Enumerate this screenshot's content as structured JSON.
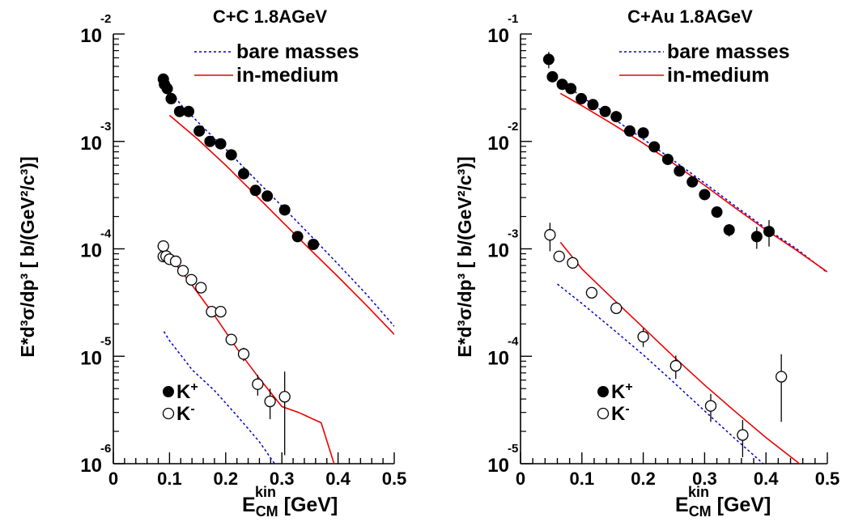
{
  "panels": [
    {
      "title": "C+C 1.8AGeV",
      "ylabel": "E*d³σ/dp³ [ b/(GeV²/c³)]",
      "xlabel_main": "E",
      "xlabel_sup": "kin",
      "xlabel_sub": "CM",
      "xlabel_unit": " [GeV]",
      "legend_curves": [
        {
          "label": "bare masses",
          "style": "dashed",
          "color": "#0000cc"
        },
        {
          "label": "in-medium",
          "style": "solid",
          "color": "#ee0000"
        }
      ],
      "legend_markers": [
        {
          "label": "K",
          "sup": "+",
          "marker": "filled"
        },
        {
          "label": "K",
          "sup": "-",
          "marker": "open"
        }
      ]
    },
    {
      "title": "C+Au 1.8AGeV",
      "ylabel": "E*d³σ/dp³ [ b/(GeV²/c³)]",
      "xlabel_main": "E",
      "xlabel_sup": "kin",
      "xlabel_sub": "CM",
      "xlabel_unit": " [GeV]",
      "legend_curves": [
        {
          "label": "bare masses",
          "style": "dashed",
          "color": "#0000cc"
        },
        {
          "label": "in-medium",
          "style": "solid",
          "color": "#ee0000"
        }
      ],
      "legend_markers": [
        {
          "label": "K",
          "sup": "+",
          "marker": "filled"
        },
        {
          "label": "K",
          "sup": "-",
          "marker": "open"
        }
      ]
    }
  ],
  "chart_data": [
    {
      "type": "scatter",
      "title": "C+C 1.8AGeV",
      "xlabel": "E_CM^kin [GeV]",
      "ylabel": "E*d³σ/dp³ [ b/(GeV²/c³)]",
      "xlim": [
        0,
        0.5
      ],
      "ylim_log10": [
        -6,
        -2
      ],
      "yscale": "log",
      "xticks": [
        "0",
        "0.1",
        "0.2",
        "0.3",
        "0.4",
        "0.5"
      ],
      "yticks": [
        {
          "base": "10",
          "exp": "-2"
        },
        {
          "base": "10",
          "exp": "-3"
        },
        {
          "base": "10",
          "exp": "-4"
        },
        {
          "base": "10",
          "exp": "-5"
        },
        {
          "base": "10",
          "exp": "-6"
        }
      ],
      "grid": false,
      "legend": "top-right",
      "series": [
        {
          "name": "K+",
          "kind": "points",
          "marker": "filled",
          "x": [
            0.089,
            0.091,
            0.096,
            0.103,
            0.118,
            0.134,
            0.153,
            0.172,
            0.191,
            0.21,
            0.232,
            0.253,
            0.274,
            0.305,
            0.328,
            0.356
          ],
          "y": [
            0.0038,
            0.0034,
            0.0031,
            0.0025,
            0.0019,
            0.0019,
            0.00125,
            0.001,
            0.00095,
            0.00075,
            0.0005,
            0.00035,
            0.00031,
            0.00023,
            0.00013,
            0.00011
          ],
          "yerr": [
            0,
            0,
            0,
            0,
            0,
            0,
            0,
            0,
            0,
            0,
            0,
            0,
            0,
            0,
            0,
            0
          ]
        },
        {
          "name": "K-",
          "kind": "points",
          "marker": "open",
          "x": [
            0.089,
            0.089,
            0.094,
            0.1,
            0.111,
            0.124,
            0.139,
            0.156,
            0.175,
            0.191,
            0.21,
            0.232,
            0.257,
            0.279,
            0.305
          ],
          "y": [
            0.000106,
            8.48e-05,
            8.55e-05,
            8e-05,
            7.65e-05,
            6.25e-05,
            5.15e-05,
            4.35e-05,
            2.6e-05,
            2.6e-05,
            1.43e-05,
            1.05e-05,
            5.5e-06,
            3.8e-06,
            4.2e-06
          ],
          "yerr": [
            0,
            8e-06,
            0,
            0,
            0,
            0,
            0,
            0,
            0,
            0,
            0,
            1.5e-06,
            1.2e-06,
            1.2e-06,
            3e-06
          ]
        },
        {
          "name": "bare masses K+",
          "kind": "line",
          "style": "dashed",
          "color": "#0000cc",
          "x": [
            0.09,
            0.12,
            0.16,
            0.2,
            0.25,
            0.3,
            0.35,
            0.4,
            0.45,
            0.5
          ],
          "y": [
            0.0036,
            0.0022,
            0.00135,
            0.00085,
            0.00046,
            0.00025,
            0.000135,
            7.2e-05,
            3.8e-05,
            1.9e-05
          ]
        },
        {
          "name": "in-medium K+",
          "kind": "line",
          "style": "solid",
          "color": "#ee0000",
          "x": [
            0.1,
            0.15,
            0.2,
            0.25,
            0.3,
            0.35,
            0.4,
            0.45,
            0.5
          ],
          "y": [
            0.00175,
            0.00105,
            0.0006,
            0.00033,
            0.00018,
            9.9e-05,
            5.5e-05,
            3e-05,
            1.6e-05
          ]
        },
        {
          "name": "bare masses K-",
          "kind": "line",
          "style": "dashed",
          "color": "#0000cc",
          "x": [
            0.09,
            0.1,
            0.14,
            0.18,
            0.22,
            0.26,
            0.3,
            0.33,
            0.37,
            0.4
          ],
          "y": [
            1.7e-05,
            1.4e-05,
            7.5e-06,
            4.8e-06,
            2.8e-06,
            1.6e-06,
            8e-07,
            5.8e-07,
            4.5e-07,
            3.4e-07
          ]
        },
        {
          "name": "in-medium K-",
          "kind": "line",
          "style": "solid",
          "color": "#ee0000",
          "x": [
            0.09,
            0.1,
            0.14,
            0.18,
            0.22,
            0.26,
            0.3,
            0.33,
            0.37,
            0.41
          ],
          "y": [
            0.0001,
            8.5e-05,
            4.6e-05,
            2.4e-05,
            1.18e-05,
            6.2e-06,
            3.4e-06,
            3e-06,
            2.4e-06,
            5.2e-07
          ]
        }
      ]
    },
    {
      "type": "scatter",
      "title": "C+Au 1.8AGeV",
      "xlabel": "E_CM^kin [GeV]",
      "ylabel": "E*d³σ/dp³ [ b/(GeV²/c³)]",
      "xlim": [
        0,
        0.5
      ],
      "ylim_log10": [
        -5,
        -1
      ],
      "yscale": "log",
      "xticks": [
        "0",
        "0.1",
        "0.2",
        "0.3",
        "0.4",
        "0.5"
      ],
      "yticks": [
        {
          "base": "10",
          "exp": "-1"
        },
        {
          "base": "10",
          "exp": "-2"
        },
        {
          "base": "10",
          "exp": "-3"
        },
        {
          "base": "10",
          "exp": "-4"
        },
        {
          "base": "10",
          "exp": "-5"
        }
      ],
      "grid": false,
      "legend": "top-right",
      "series": [
        {
          "name": "K+",
          "kind": "points",
          "marker": "filled",
          "x": [
            0.046,
            0.052,
            0.068,
            0.082,
            0.099,
            0.118,
            0.138,
            0.156,
            0.178,
            0.2,
            0.218,
            0.24,
            0.259,
            0.28,
            0.3,
            0.32,
            0.34,
            0.385,
            0.405
          ],
          "y": [
            0.058,
            0.04,
            0.034,
            0.031,
            0.025,
            0.022,
            0.019,
            0.017,
            0.0125,
            0.012,
            0.0089,
            0.0068,
            0.0053,
            0.0042,
            0.0032,
            0.0022,
            0.0015,
            0.0013,
            0.00145
          ],
          "yerr": [
            0.01,
            0,
            0,
            0,
            0,
            0,
            0,
            0,
            0,
            0,
            0,
            0,
            0,
            0,
            0,
            0,
            0.0002,
            0.0003,
            0.0004
          ]
        },
        {
          "name": "K-",
          "kind": "points",
          "marker": "open",
          "x": [
            0.048,
            0.063,
            0.085,
            0.116,
            0.156,
            0.2,
            0.253,
            0.31,
            0.362,
            0.425
          ],
          "y": [
            0.00135,
            0.00085,
            0.00074,
            0.00039,
            0.00028,
            0.000152,
            8.15e-05,
            3.45e-05,
            1.85e-05,
            6.45e-05
          ],
          "yerr": [
            0.0004,
            0,
            0,
            0,
            0,
            3e-05,
            2e-05,
            1e-05,
            7e-06,
            4e-05
          ]
        },
        {
          "name": "bare masses K+",
          "kind": "line",
          "style": "dashed",
          "color": "#0000cc",
          "x": [
            0.05,
            0.1,
            0.15,
            0.2,
            0.25,
            0.3,
            0.35,
            0.4,
            0.45,
            0.5
          ],
          "y": [
            0.042,
            0.026,
            0.0165,
            0.0105,
            0.0066,
            0.0041,
            0.0025,
            0.00155,
            0.001,
            0.0006
          ]
        },
        {
          "name": "in-medium K+",
          "kind": "line",
          "style": "solid",
          "color": "#ee0000",
          "x": [
            0.065,
            0.1,
            0.15,
            0.2,
            0.25,
            0.3,
            0.35,
            0.4,
            0.45,
            0.5
          ],
          "y": [
            0.028,
            0.0215,
            0.0145,
            0.0096,
            0.0062,
            0.0039,
            0.0024,
            0.0015,
            0.00097,
            0.00061
          ]
        },
        {
          "name": "bare masses K-",
          "kind": "line",
          "style": "dashed",
          "color": "#0000cc",
          "x": [
            0.06,
            0.1,
            0.15,
            0.2,
            0.25,
            0.3,
            0.35,
            0.4
          ],
          "y": [
            0.00047,
            0.00031,
            0.00018,
            0.000103,
            5.7e-05,
            3.1e-05,
            1.7e-05,
            9.5e-06
          ]
        },
        {
          "name": "in-medium K-",
          "kind": "line",
          "style": "solid",
          "color": "#ee0000",
          "x": [
            0.065,
            0.1,
            0.15,
            0.2,
            0.25,
            0.3,
            0.35,
            0.4,
            0.45,
            0.49
          ],
          "y": [
            0.00115,
            0.00065,
            0.000345,
            0.000185,
            9.85e-05,
            5.4e-05,
            3.05e-05,
            1.75e-05,
            1.05e-05,
            6.8e-06
          ]
        }
      ]
    }
  ]
}
